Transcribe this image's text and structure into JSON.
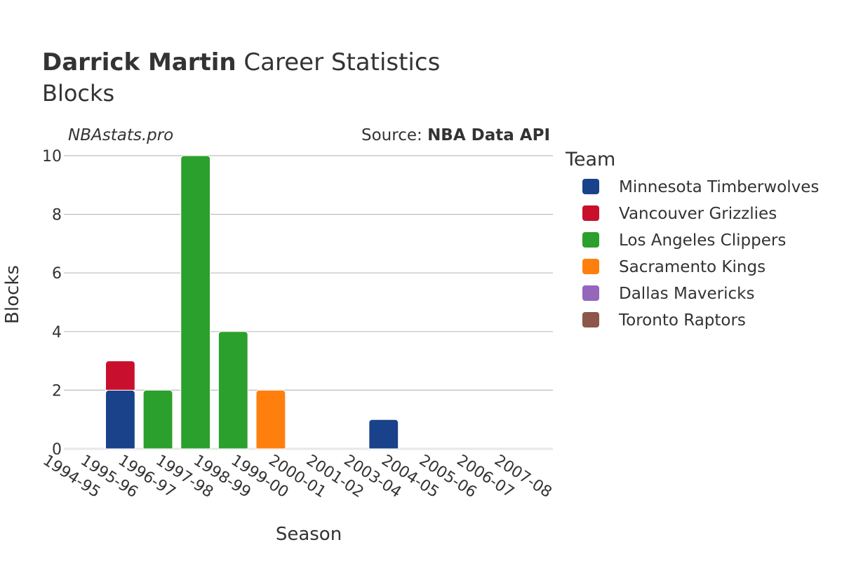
{
  "header": {
    "title_bold": "Darrick Martin",
    "title_rest": " Career Statistics",
    "subtitle": "Blocks"
  },
  "watermark": "NBAstats.pro",
  "source": {
    "prefix": "Source: ",
    "name": "NBA Data API"
  },
  "chart_data": {
    "type": "bar",
    "stacked": true,
    "xlabel": "Season",
    "ylabel": "Blocks",
    "ylim": [
      0,
      10
    ],
    "yticks": [
      0,
      2,
      4,
      6,
      8,
      10
    ],
    "grid": true,
    "legend_title": "Team",
    "legend_position": "right",
    "categories": [
      "1994-95",
      "1995-96",
      "1996-97",
      "1997-98",
      "1998-99",
      "1999-00",
      "2000-01",
      "2001-02",
      "2003-04",
      "2004-05",
      "2005-06",
      "2006-07",
      "2007-08"
    ],
    "series": [
      {
        "name": "Minnesota Timberwolves",
        "color": "#1a428a",
        "values": [
          0,
          2,
          0,
          0,
          0,
          0,
          0,
          0,
          1,
          0,
          0,
          0,
          0
        ]
      },
      {
        "name": "Vancouver Grizzlies",
        "color": "#c8102e",
        "values": [
          0,
          1,
          0,
          0,
          0,
          0,
          0,
          0,
          0,
          0,
          0,
          0,
          0
        ]
      },
      {
        "name": "Los Angeles Clippers",
        "color": "#2ca02c",
        "values": [
          0,
          0,
          2,
          10,
          4,
          0,
          0,
          0,
          0,
          0,
          0,
          0,
          0
        ]
      },
      {
        "name": "Sacramento Kings",
        "color": "#ff7f0e",
        "values": [
          0,
          0,
          0,
          0,
          0,
          2,
          0,
          0,
          0,
          0,
          0,
          0,
          0
        ]
      },
      {
        "name": "Dallas Mavericks",
        "color": "#9467bd",
        "values": [
          0,
          0,
          0,
          0,
          0,
          0,
          0,
          0,
          0,
          0,
          0,
          0,
          0
        ]
      },
      {
        "name": "Toronto Raptors",
        "color": "#8c564b",
        "values": [
          0,
          0,
          0,
          0,
          0,
          0,
          0,
          0,
          0,
          0,
          0,
          0,
          0
        ]
      }
    ]
  }
}
